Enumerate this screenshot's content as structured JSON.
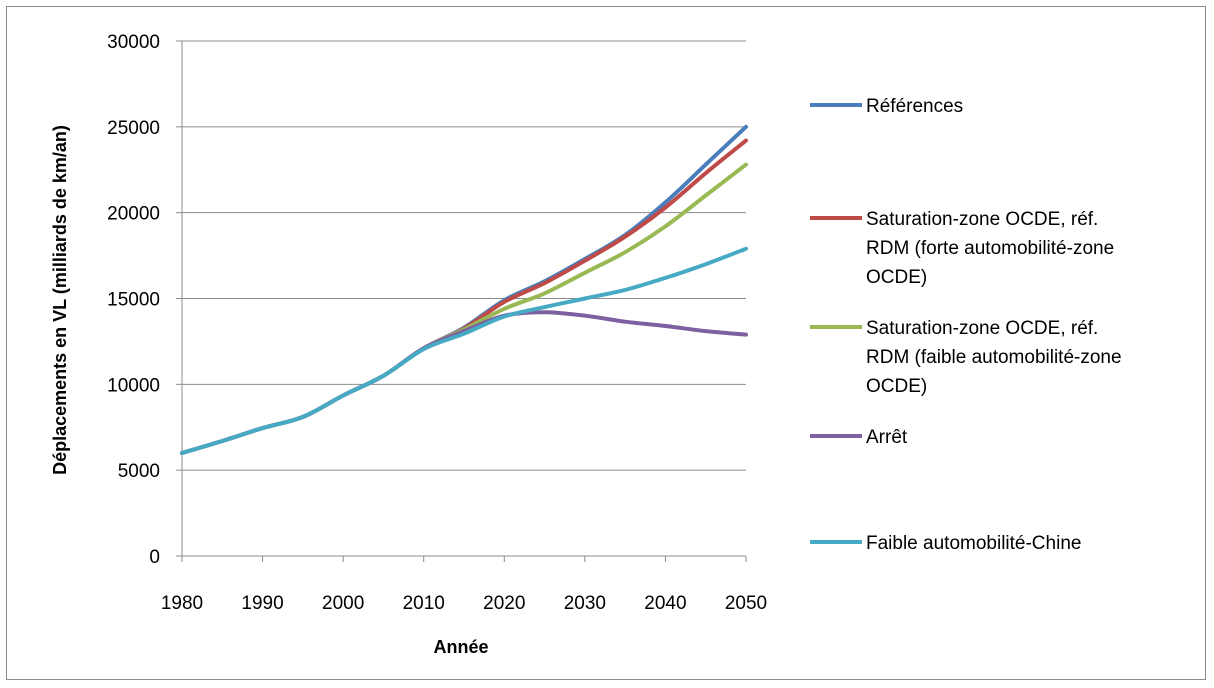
{
  "chart_data": {
    "type": "line",
    "title": "",
    "xlabel": "Année",
    "ylabel": "Déplacements en VL (milliards de km/an)",
    "xlim": [
      1980,
      2050
    ],
    "ylim": [
      0,
      30000
    ],
    "x_ticks": [
      "1980",
      "1990",
      "2000",
      "2010",
      "2020",
      "2030",
      "2040",
      "2050"
    ],
    "y_ticks": [
      "0",
      "5000",
      "10000",
      "15000",
      "20000",
      "25000",
      "30000"
    ],
    "grid": "horizontal",
    "legend_position": "right",
    "series": [
      {
        "name": "Références",
        "color": "#4a7ebb",
        "legend_lines": [
          "Références"
        ],
        "points": [
          [
            1980,
            6000
          ],
          [
            1985,
            6700
          ],
          [
            1990,
            7450
          ],
          [
            1995,
            8100
          ],
          [
            2000,
            9350
          ],
          [
            2005,
            10500
          ],
          [
            2010,
            12100
          ],
          [
            2015,
            13300
          ],
          [
            2020,
            14900
          ],
          [
            2025,
            16000
          ],
          [
            2030,
            17300
          ],
          [
            2035,
            18700
          ],
          [
            2040,
            20600
          ],
          [
            2045,
            22800
          ],
          [
            2050,
            25000
          ]
        ]
      },
      {
        "name": "Saturation-zone OCDE, réf. RDM (forte automobilité-zone OCDE)",
        "color": "#be4b48",
        "legend_lines": [
          "Saturation-zone OCDE, réf.",
          "RDM (forte automobilité-zone",
          "OCDE)"
        ],
        "points": [
          [
            1980,
            6000
          ],
          [
            1985,
            6700
          ],
          [
            1990,
            7450
          ],
          [
            1995,
            8100
          ],
          [
            2000,
            9350
          ],
          [
            2005,
            10500
          ],
          [
            2010,
            12100
          ],
          [
            2015,
            13250
          ],
          [
            2020,
            14800
          ],
          [
            2025,
            15900
          ],
          [
            2030,
            17200
          ],
          [
            2035,
            18600
          ],
          [
            2040,
            20300
          ],
          [
            2045,
            22300
          ],
          [
            2050,
            24200
          ]
        ]
      },
      {
        "name": "Saturation-zone OCDE, réf. RDM (faible automobilité-zone OCDE)",
        "color": "#98b954",
        "legend_lines": [
          "Saturation-zone OCDE, réf.",
          "RDM (faible automobilité-zone",
          "OCDE)"
        ],
        "points": [
          [
            1980,
            6000
          ],
          [
            1985,
            6700
          ],
          [
            1990,
            7450
          ],
          [
            1995,
            8100
          ],
          [
            2000,
            9350
          ],
          [
            2005,
            10500
          ],
          [
            2010,
            12100
          ],
          [
            2015,
            13200
          ],
          [
            2020,
            14400
          ],
          [
            2025,
            15300
          ],
          [
            2030,
            16500
          ],
          [
            2035,
            17700
          ],
          [
            2040,
            19200
          ],
          [
            2045,
            21000
          ],
          [
            2050,
            22800
          ]
        ]
      },
      {
        "name": "Arrêt",
        "color": "#7d60a0",
        "legend_lines": [
          "Arrêt"
        ],
        "points": [
          [
            1980,
            6000
          ],
          [
            1985,
            6700
          ],
          [
            1990,
            7450
          ],
          [
            1995,
            8100
          ],
          [
            2000,
            9350
          ],
          [
            2005,
            10500
          ],
          [
            2010,
            12100
          ],
          [
            2015,
            13100
          ],
          [
            2020,
            14000
          ],
          [
            2025,
            14200
          ],
          [
            2030,
            14000
          ],
          [
            2035,
            13650
          ],
          [
            2040,
            13400
          ],
          [
            2045,
            13100
          ],
          [
            2050,
            12900
          ]
        ]
      },
      {
        "name": "Faible automobilité-Chine",
        "color": "#46aac5",
        "legend_lines": [
          "Faible automobilité-Chine"
        ],
        "points": [
          [
            1980,
            6000
          ],
          [
            1985,
            6700
          ],
          [
            1990,
            7450
          ],
          [
            1995,
            8100
          ],
          [
            2000,
            9350
          ],
          [
            2005,
            10500
          ],
          [
            2010,
            12050
          ],
          [
            2015,
            12950
          ],
          [
            2020,
            13950
          ],
          [
            2025,
            14500
          ],
          [
            2030,
            15000
          ],
          [
            2035,
            15500
          ],
          [
            2040,
            16200
          ],
          [
            2045,
            17000
          ],
          [
            2050,
            17900
          ]
        ]
      }
    ]
  }
}
